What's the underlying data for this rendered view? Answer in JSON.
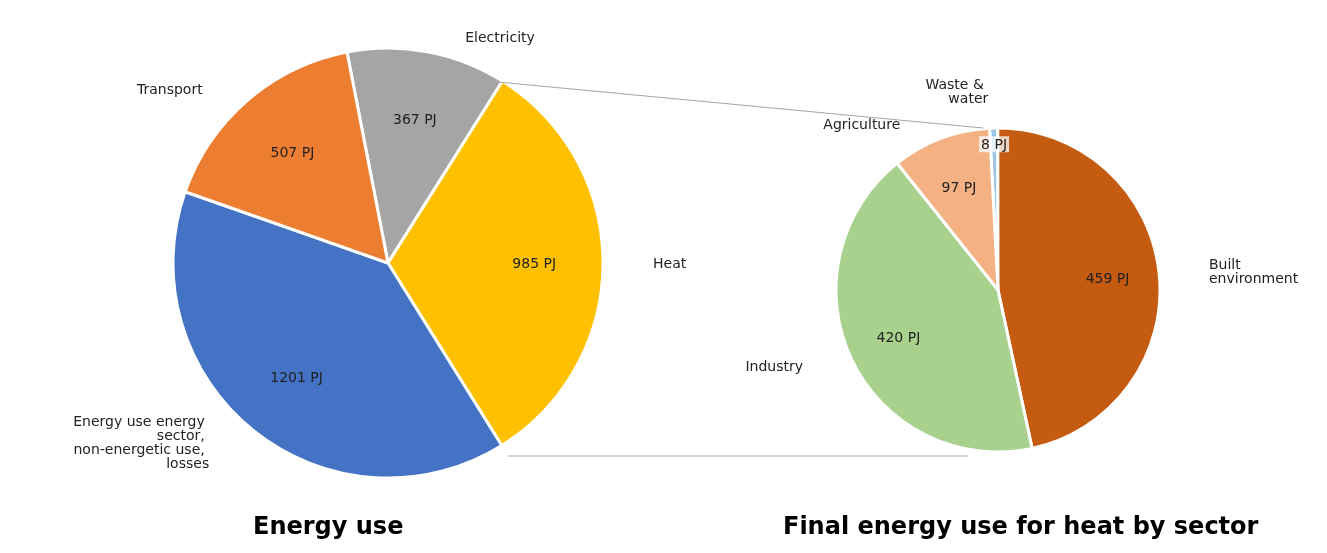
{
  "chart_data": [
    {
      "type": "pie",
      "title": "Energy use",
      "categories": [
        "Electricity",
        "Heat",
        "Energy use energy sector, non-energetic use, losses",
        "Transport"
      ],
      "values": [
        367,
        985,
        1201,
        507
      ],
      "colors": [
        "#a5a5a5",
        "#ffc000",
        "#4472c4",
        "#ed7d31"
      ],
      "value_labels": [
        "367 PJ",
        "985 PJ",
        "1201 PJ",
        "507 PJ"
      ],
      "legend": false
    },
    {
      "type": "pie",
      "title": "Final energy use for heat by sector",
      "categories": [
        "Waste & water",
        "Built environment",
        "Industry",
        "Agriculture"
      ],
      "values": [
        8,
        459,
        420,
        97
      ],
      "colors": [
        "#9dc3e6",
        "#c55a11",
        "#a9d18e",
        "#f4b183"
      ],
      "value_labels": [
        "8 PJ",
        "459 PJ",
        "420 PJ",
        "97 PJ"
      ],
      "legend": false
    }
  ]
}
